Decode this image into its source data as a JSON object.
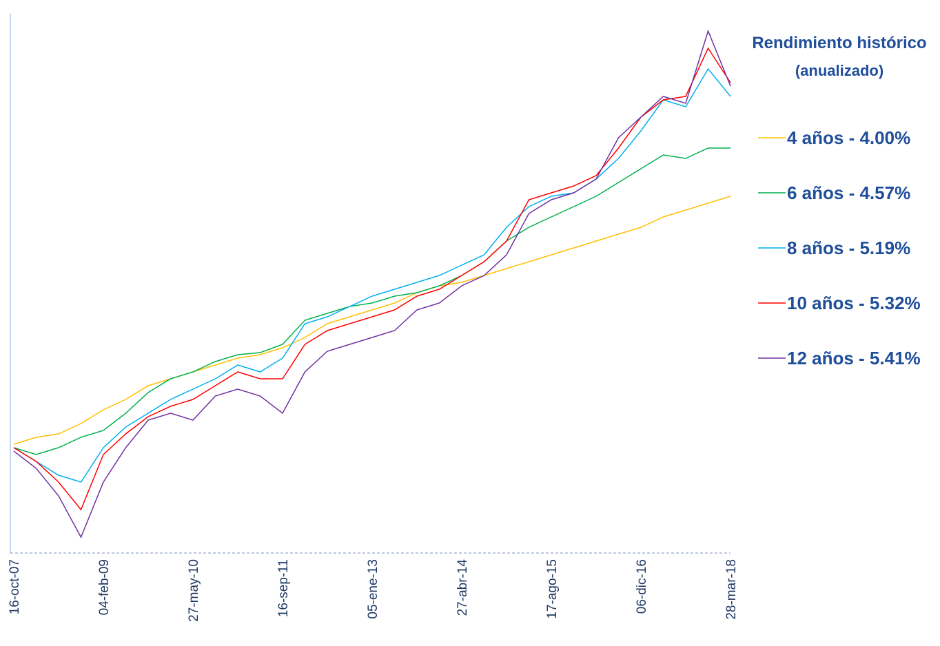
{
  "chart_data": {
    "type": "line",
    "title": "Rendimiento histórico",
    "subtitle": "(anualizado)",
    "categories": [
      "16-oct-07",
      null,
      null,
      null,
      "04-feb-09",
      null,
      null,
      null,
      "27-may-10",
      null,
      null,
      null,
      "16-sep-11",
      null,
      null,
      null,
      "05-ene-13",
      null,
      null,
      null,
      "27-abr-14",
      null,
      null,
      null,
      "17-ago-15",
      null,
      null,
      null,
      "06-dic-16",
      null,
      null,
      null,
      "28-mar-18"
    ],
    "ylim": [
      0,
      763
    ],
    "series": [
      {
        "name": "4 años - 4.00%",
        "color": "#ffc000",
        "values": [
          158,
          168,
          173,
          188,
          208,
          223,
          243,
          253,
          263,
          273,
          283,
          288,
          298,
          313,
          333,
          343,
          353,
          363,
          378,
          388,
          393,
          403,
          413,
          423,
          433,
          443,
          453,
          463,
          473,
          488,
          498,
          508,
          518
        ]
      },
      {
        "name": "6 años - 4.57%",
        "color": "#00b050",
        "values": [
          153,
          143,
          153,
          168,
          178,
          203,
          233,
          253,
          263,
          278,
          288,
          291,
          303,
          338,
          348,
          358,
          363,
          373,
          378,
          388,
          403,
          423,
          453,
          473,
          488,
          503,
          518,
          538,
          558,
          578,
          573,
          588,
          588
        ]
      },
      {
        "name": "8 años - 5.19%",
        "color": "#00b0f0",
        "values": [
          153,
          133,
          113,
          103,
          153,
          183,
          203,
          223,
          238,
          253,
          273,
          263,
          283,
          333,
          343,
          358,
          373,
          383,
          393,
          403,
          418,
          433,
          473,
          503,
          518,
          523,
          543,
          573,
          613,
          658,
          648,
          703,
          663
        ]
      },
      {
        "name": "10 años - 5.32%",
        "color": "#ff0000",
        "values": [
          153,
          133,
          103,
          63,
          143,
          173,
          198,
          213,
          223,
          243,
          263,
          253,
          253,
          303,
          323,
          333,
          343,
          353,
          373,
          383,
          403,
          423,
          453,
          513,
          523,
          533,
          548,
          588,
          633,
          658,
          663,
          733,
          683
        ]
      },
      {
        "name": "12 años - 5.41%",
        "color": "#7030a0",
        "values": [
          148,
          123,
          83,
          23,
          103,
          153,
          193,
          203,
          193,
          228,
          238,
          228,
          203,
          263,
          293,
          303,
          313,
          323,
          353,
          363,
          388,
          403,
          433,
          493,
          513,
          523,
          543,
          603,
          633,
          663,
          653,
          758,
          678
        ]
      }
    ]
  }
}
